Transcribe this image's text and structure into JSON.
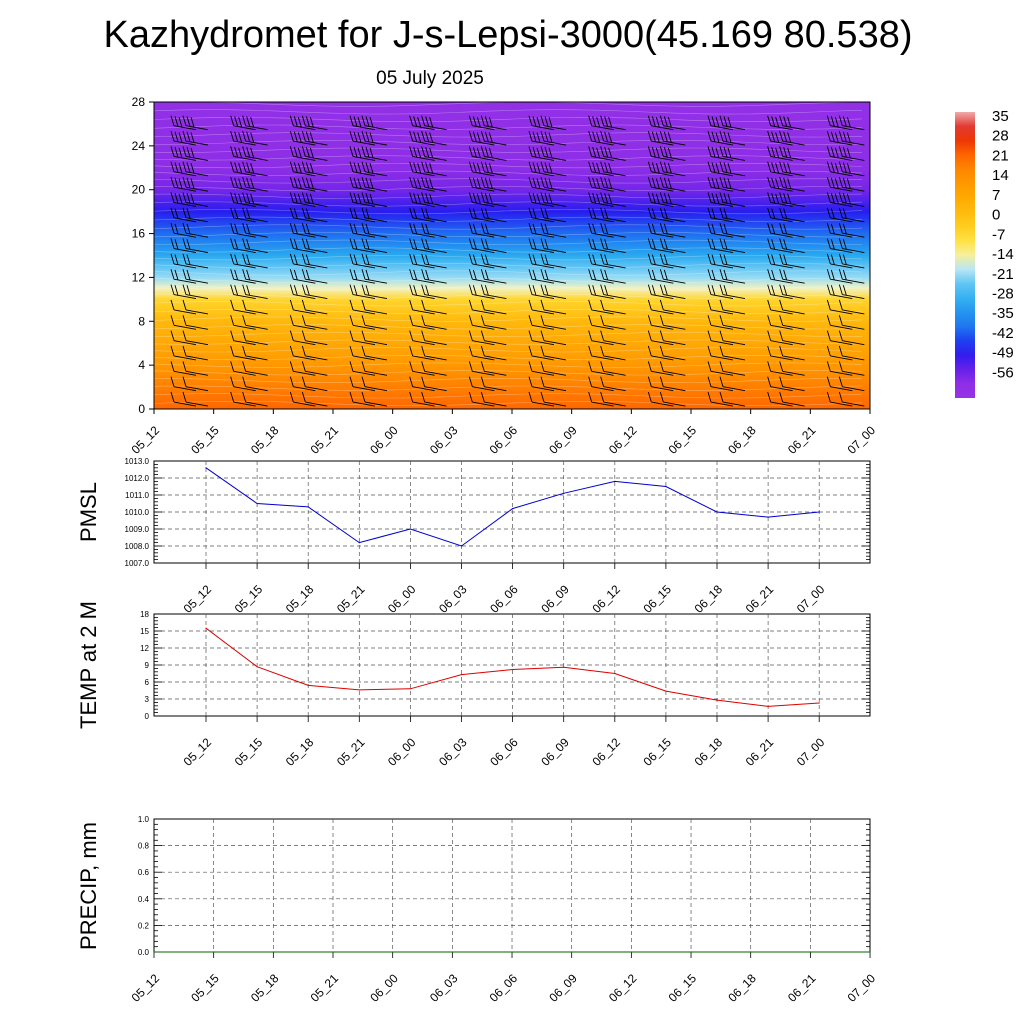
{
  "title": "Kazhydromet for J-s-Lepsi-3000(45.169 80.538)",
  "subtitle": "05 July 2025",
  "time_labels": [
    "05_12",
    "05_15",
    "05_18",
    "05_21",
    "06_00",
    "06_03",
    "06_06",
    "06_09",
    "06_12",
    "06_15",
    "06_18",
    "06_21",
    "07_00"
  ],
  "chart_data": [
    {
      "type": "heatmap",
      "xlabel": "",
      "ylabel": "",
      "categories": [
        "05_12",
        "05_15",
        "05_18",
        "05_21",
        "06_00",
        "06_03",
        "06_06",
        "06_09",
        "06_12",
        "06_15",
        "06_18",
        "06_21",
        "07_00"
      ],
      "yticks": [
        0,
        4,
        8,
        12,
        16,
        20,
        24,
        28
      ],
      "ylim": [
        0,
        28
      ],
      "colorbar_labels": [
        "35",
        "28",
        "21",
        "14",
        "7",
        "0",
        "-7",
        "-14",
        "-21",
        "-28",
        "-35",
        "-42",
        "-49",
        "-56"
      ],
      "colorbar_range": [
        -63,
        42
      ],
      "colors": {
        "warm": "#ff5a00",
        "orange": "#ff9a00",
        "yellow": "#ffe040",
        "cyan": "#30b8f0",
        "blue": "#2020f0",
        "violet": "#8a2be2",
        "barbs": "#000000"
      },
      "overlay": "wind barbs",
      "temperature_profile": [
        {
          "height": 0,
          "value": 26
        },
        {
          "height": 4,
          "value": 16
        },
        {
          "height": 8,
          "value": 6
        },
        {
          "height": 10,
          "value": -2
        },
        {
          "height": 11,
          "value": -12
        },
        {
          "height": 12,
          "value": -17
        },
        {
          "height": 14,
          "value": -28
        },
        {
          "height": 16,
          "value": -38
        },
        {
          "height": 18,
          "value": -46
        },
        {
          "height": 20,
          "value": -54
        },
        {
          "height": 22,
          "value": -57
        },
        {
          "height": 28,
          "value": -60
        }
      ]
    },
    {
      "type": "line",
      "ylabel": "PMSL",
      "categories": [
        "05_12",
        "05_15",
        "05_18",
        "05_21",
        "06_00",
        "06_03",
        "06_06",
        "06_09",
        "06_12",
        "06_15",
        "06_18",
        "06_21",
        "07_00"
      ],
      "ylim": [
        1007.0,
        1013.0
      ],
      "yticks": [
        "1007.0",
        "1008.0",
        "1009.0",
        "1010.0",
        "1011.0",
        "1012.0",
        "1013.0"
      ],
      "grid": true,
      "color": "#0000cc",
      "values": [
        1012.6,
        1010.5,
        1010.3,
        1008.2,
        1009.0,
        1008.0,
        1010.2,
        1011.1,
        1011.8,
        1011.5,
        1010.0,
        1009.7,
        1010.0
      ]
    },
    {
      "type": "line",
      "ylabel": "TEMP at 2 M",
      "categories": [
        "05_12",
        "05_15",
        "05_18",
        "05_21",
        "06_00",
        "06_03",
        "06_06",
        "06_09",
        "06_12",
        "06_15",
        "06_18",
        "06_21",
        "07_00"
      ],
      "ylim": [
        0,
        18
      ],
      "yticks": [
        "0",
        "3",
        "6",
        "9",
        "12",
        "15",
        "18"
      ],
      "grid": true,
      "color": "#dd0000",
      "values": [
        15.5,
        8.7,
        5.4,
        4.6,
        4.8,
        7.3,
        8.2,
        8.6,
        7.5,
        4.4,
        2.8,
        1.7,
        2.3
      ]
    },
    {
      "type": "line",
      "ylabel": "PRECIP, mm",
      "categories": [
        "05_12",
        "05_15",
        "05_18",
        "05_21",
        "06_00",
        "06_03",
        "06_06",
        "06_09",
        "06_12",
        "06_15",
        "06_18",
        "06_21",
        "07_00"
      ],
      "ylim": [
        0.0,
        1.0
      ],
      "yticks": [
        "0.0",
        "0.2",
        "0.4",
        "0.6",
        "0.8",
        "1.0"
      ],
      "grid": true,
      "color": "#006600",
      "values": [
        0,
        0,
        0,
        0,
        0,
        0,
        0,
        0,
        0,
        0,
        0,
        0,
        0
      ]
    }
  ]
}
